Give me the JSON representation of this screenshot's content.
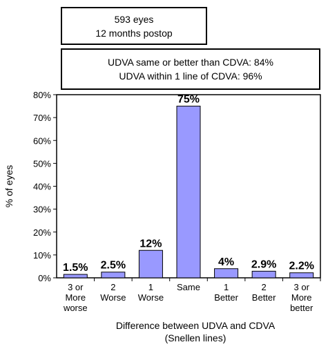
{
  "info_box": {
    "line1": "593 eyes",
    "line2": "12 months postop"
  },
  "stats_box": {
    "line1": "UDVA same or better than CDVA: 84%",
    "line2": "UDVA within 1 line of CDVA: 96%"
  },
  "chart_data": {
    "type": "bar",
    "categories": [
      [
        "3 or",
        "More",
        "worse"
      ],
      [
        "2",
        "Worse"
      ],
      [
        "1",
        "Worse"
      ],
      [
        "Same"
      ],
      [
        "1",
        "Better"
      ],
      [
        "2",
        "Better"
      ],
      [
        "3 or",
        "More",
        "better"
      ]
    ],
    "values": [
      1.5,
      2.5,
      12,
      75,
      4,
      2.9,
      2.2
    ],
    "data_labels": [
      "1.5%",
      "2.5%",
      "12%",
      "75%",
      "4%",
      "2.9%",
      "2.2%"
    ],
    "xlabel": [
      "Difference between UDVA and CDVA",
      "(Snellen lines)"
    ],
    "ylabel": "% of eyes",
    "ylim": [
      0,
      80
    ],
    "yticks": [
      "0%",
      "10%",
      "20%",
      "30%",
      "40%",
      "50%",
      "60%",
      "70%",
      "80%"
    ],
    "bar_color": "#9999ff",
    "grid": false
  }
}
